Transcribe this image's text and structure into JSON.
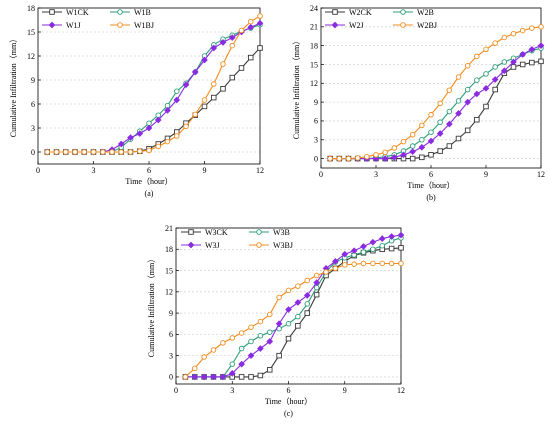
{
  "figure": {
    "background": "#ffffff"
  },
  "series_styles": {
    "CK": {
      "color": "#3a3a3a",
      "marker": "square"
    },
    "B": {
      "color": "#2e9e77",
      "marker": "circle"
    },
    "J": {
      "color": "#8a2be2",
      "marker": "diamond"
    },
    "BJ": {
      "color": "#f28c1e",
      "marker": "circle"
    }
  },
  "chart_data": [
    {
      "type": "line",
      "panel": "(a)",
      "xlabel": "Time（hour）",
      "ylabel": "Cumulative Infiltration（mm）",
      "xlim": [
        0,
        12
      ],
      "ylim": [
        -1.5,
        18
      ],
      "xticks": [
        0,
        3,
        6,
        9,
        12
      ],
      "yticks": [
        0,
        3,
        6,
        9,
        12,
        15,
        18
      ],
      "grid": "horizontal dashed",
      "legend": "top-left",
      "x": [
        0.5,
        1,
        1.5,
        2,
        2.5,
        3,
        3.5,
        4,
        4.5,
        5,
        5.5,
        6,
        6.5,
        7,
        7.5,
        8,
        8.5,
        9,
        9.5,
        10,
        10.5,
        11,
        11.5,
        12
      ],
      "series": [
        {
          "name": "W1CK",
          "style": "CK",
          "values": [
            0,
            0,
            0,
            0,
            0,
            0,
            0,
            0,
            0,
            0,
            0.1,
            0.4,
            1.0,
            1.7,
            2.5,
            3.6,
            4.6,
            5.7,
            6.8,
            7.9,
            9.3,
            10.5,
            11.8,
            13.0
          ]
        },
        {
          "name": "W1B",
          "style": "B",
          "values": [
            0,
            0,
            0,
            0,
            0,
            0,
            0,
            0,
            0.6,
            1.6,
            2.6,
            3.6,
            4.6,
            5.8,
            7.6,
            8.6,
            10.0,
            12.0,
            13.4,
            14.1,
            14.6,
            15.1,
            15.5,
            15.9
          ]
        },
        {
          "name": "W1J",
          "style": "J",
          "values": [
            0,
            0,
            0,
            0,
            0,
            0,
            0,
            0.3,
            1.0,
            1.8,
            2.3,
            3.0,
            4.0,
            5.2,
            6.5,
            8.4,
            10.0,
            11.5,
            13.0,
            13.7,
            14.3,
            15.0,
            15.6,
            16.1
          ]
        },
        {
          "name": "W1BJ",
          "style": "BJ",
          "values": [
            0,
            0,
            0,
            0,
            0,
            0,
            0,
            0,
            0,
            0,
            0.1,
            0.2,
            0.7,
            1.3,
            2.0,
            3.2,
            4.7,
            6.5,
            8.5,
            11.0,
            13.3,
            15.2,
            16.3,
            17.0
          ]
        }
      ]
    },
    {
      "type": "line",
      "panel": "(b)",
      "xlabel": "Time（hour）",
      "ylabel": "Cumulative Infiltration（mm）",
      "xlim": [
        0,
        12
      ],
      "ylim": [
        -1.5,
        24
      ],
      "xticks": [
        0,
        3,
        6,
        9,
        12
      ],
      "yticks": [
        0,
        3,
        6,
        9,
        12,
        15,
        18,
        21,
        24
      ],
      "grid": "horizontal dashed",
      "legend": "top-left",
      "x": [
        0.5,
        1,
        1.5,
        2,
        2.5,
        3,
        3.5,
        4,
        4.5,
        5,
        5.5,
        6,
        6.5,
        7,
        7.5,
        8,
        8.5,
        9,
        9.5,
        10,
        10.5,
        11,
        11.5,
        12
      ],
      "series": [
        {
          "name": "W2CK",
          "style": "CK",
          "values": [
            0,
            0,
            0,
            0,
            0,
            0,
            0,
            0,
            0,
            0,
            0.2,
            0.6,
            1.2,
            2.0,
            3.2,
            4.5,
            6.2,
            8.3,
            11.0,
            13.6,
            14.6,
            15.0,
            15.3,
            15.5
          ]
        },
        {
          "name": "W2B",
          "style": "B",
          "values": [
            0,
            0,
            0,
            0,
            0,
            0.1,
            0.3,
            0.6,
            1.2,
            2.0,
            3.0,
            4.2,
            5.8,
            7.5,
            9.2,
            11.0,
            12.5,
            13.5,
            14.6,
            15.4,
            16.0,
            16.6,
            17.2,
            17.6
          ]
        },
        {
          "name": "W2J",
          "style": "J",
          "values": [
            0,
            0,
            0,
            0,
            0,
            0,
            0,
            0.2,
            0.6,
            1.1,
            1.8,
            2.8,
            4.0,
            5.5,
            7.2,
            9.0,
            10.3,
            11.2,
            12.6,
            14.0,
            15.4,
            16.6,
            17.4,
            18.0
          ]
        },
        {
          "name": "W2BJ",
          "style": "BJ",
          "values": [
            0,
            0,
            0,
            0.1,
            0.3,
            0.6,
            1.0,
            1.7,
            2.7,
            3.8,
            5.3,
            7.0,
            8.8,
            10.9,
            13.0,
            14.8,
            16.3,
            17.4,
            18.4,
            19.3,
            19.9,
            20.4,
            20.8,
            21.0
          ]
        }
      ]
    },
    {
      "type": "line",
      "panel": "(c)",
      "xlabel": "Time（hour）",
      "ylabel": "Cumulative Infiltration（mm）",
      "xlim": [
        0,
        12
      ],
      "ylim": [
        -1.0,
        21
      ],
      "xticks": [
        0,
        3,
        6,
        9,
        12
      ],
      "yticks": [
        0,
        3,
        6,
        9,
        12,
        15,
        18,
        21
      ],
      "grid": "horizontal dashed",
      "legend": "top-left",
      "x": [
        0.5,
        1,
        1.5,
        2,
        2.5,
        3,
        3.5,
        4,
        4.5,
        5,
        5.5,
        6,
        6.5,
        7,
        7.5,
        8,
        8.5,
        9,
        9.5,
        10,
        10.5,
        11,
        11.5,
        12
      ],
      "series": [
        {
          "name": "W3CK",
          "style": "CK",
          "values": [
            0,
            0,
            0,
            0,
            0,
            0,
            0,
            0,
            0.2,
            1.0,
            3.0,
            5.4,
            7.2,
            9.0,
            11.6,
            14.3,
            15.3,
            16.3,
            17.1,
            17.5,
            17.8,
            18.0,
            18.1,
            18.2
          ]
        },
        {
          "name": "W3B",
          "style": "B",
          "values": [
            0,
            0,
            0,
            0,
            0,
            1.8,
            4.0,
            5.0,
            5.8,
            6.3,
            6.8,
            7.5,
            8.5,
            10.3,
            12.6,
            14.8,
            16.2,
            16.8,
            17.2,
            17.6,
            18.0,
            18.5,
            19.2,
            19.6
          ]
        },
        {
          "name": "W3J",
          "style": "J",
          "values": [
            0,
            0,
            0,
            0,
            0,
            0.5,
            1.8,
            3.0,
            4.0,
            5.0,
            7.5,
            9.5,
            10.5,
            11.5,
            13.3,
            15.3,
            16.3,
            17.3,
            17.8,
            18.4,
            19.0,
            19.5,
            19.8,
            20.0
          ]
        },
        {
          "name": "W3BJ",
          "style": "BJ",
          "values": [
            0,
            1.2,
            2.8,
            3.8,
            4.8,
            5.5,
            6.2,
            7.0,
            7.8,
            8.8,
            11.2,
            12.2,
            12.8,
            13.6,
            14.3,
            14.8,
            15.3,
            15.8,
            15.9,
            16.0,
            16.0,
            16.0,
            16.0,
            16.0
          ]
        }
      ]
    }
  ]
}
